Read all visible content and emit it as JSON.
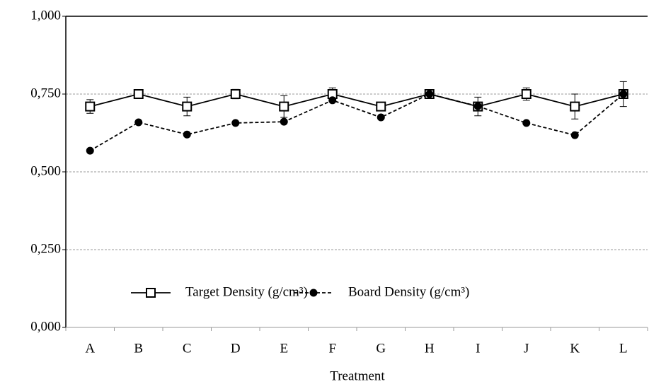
{
  "chart_data": {
    "type": "line",
    "x_label": "Treatment",
    "categories": [
      "A",
      "B",
      "C",
      "D",
      "E",
      "F",
      "G",
      "H",
      "I",
      "J",
      "K",
      "L"
    ],
    "series": [
      {
        "name": "Target Density (g/cm³)",
        "color": "#000000",
        "marker": "square-open",
        "linestyle": "solid",
        "values": [
          0.71,
          0.75,
          0.71,
          0.75,
          0.71,
          0.75,
          0.71,
          0.75,
          0.71,
          0.75,
          0.71,
          0.75
        ],
        "errors": [
          0.022,
          0.01,
          0.03,
          0.015,
          0.035,
          0.02,
          0.01,
          0.01,
          0.03,
          0.02,
          0.04,
          0.04
        ]
      },
      {
        "name": "Board Density (g/cm³)",
        "color": "#000000",
        "marker": "circle-filled",
        "linestyle": "dashed",
        "values": [
          0.568,
          0.659,
          0.62,
          0.657,
          0.661,
          0.73,
          0.675,
          0.75,
          0.711,
          0.657,
          0.618,
          0.75
        ]
      }
    ],
    "ylim": [
      0,
      1
    ],
    "yticks": [
      {
        "value": 0,
        "label": "0,000"
      },
      {
        "value": 0.25,
        "label": "0,250"
      },
      {
        "value": 0.5,
        "label": "0,500"
      },
      {
        "value": 0.75,
        "label": "0,750"
      },
      {
        "value": 1,
        "label": "1,000"
      }
    ],
    "grid": true,
    "legend": "bottom"
  }
}
